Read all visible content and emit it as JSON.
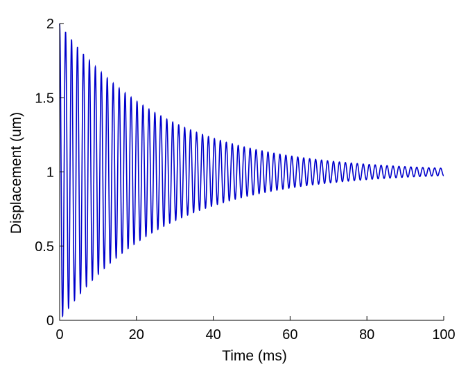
{
  "chart_data": {
    "type": "line",
    "xlabel": "Time (ms)",
    "ylabel": "Displacement (um)",
    "xlim": [
      0,
      100
    ],
    "ylim": [
      0,
      2
    ],
    "x_ticks": [
      "0",
      "20",
      "40",
      "60",
      "80",
      "100"
    ],
    "y_ticks": [
      "0",
      "0.5",
      "1",
      "1.5",
      "2"
    ],
    "grid": false,
    "series": [
      {
        "color": "#0000cc",
        "description_params": {
          "equilibrium": 1.0,
          "initial_amplitude": 1.0,
          "decay_time_ms": 27,
          "oscillation_period_ms": 1.55
        },
        "envelope_points": {
          "x": [
            0,
            2,
            5,
            10,
            15,
            20,
            25,
            30,
            35,
            40,
            45,
            50,
            55,
            60,
            65,
            70,
            75,
            80,
            85,
            90,
            95,
            100
          ],
          "upper": [
            2.0,
            1.95,
            1.85,
            1.7,
            1.58,
            1.48,
            1.38,
            1.29,
            1.23,
            1.18,
            1.14,
            1.11,
            1.08,
            1.06,
            1.05,
            1.04,
            1.03,
            1.025,
            1.02,
            1.015,
            1.012,
            1.01
          ],
          "lower": [
            0.0,
            0.06,
            0.14,
            0.28,
            0.41,
            0.52,
            0.62,
            0.71,
            0.77,
            0.82,
            0.86,
            0.89,
            0.92,
            0.94,
            0.95,
            0.96,
            0.97,
            0.975,
            0.98,
            0.985,
            0.988,
            0.99
          ]
        }
      }
    ]
  }
}
